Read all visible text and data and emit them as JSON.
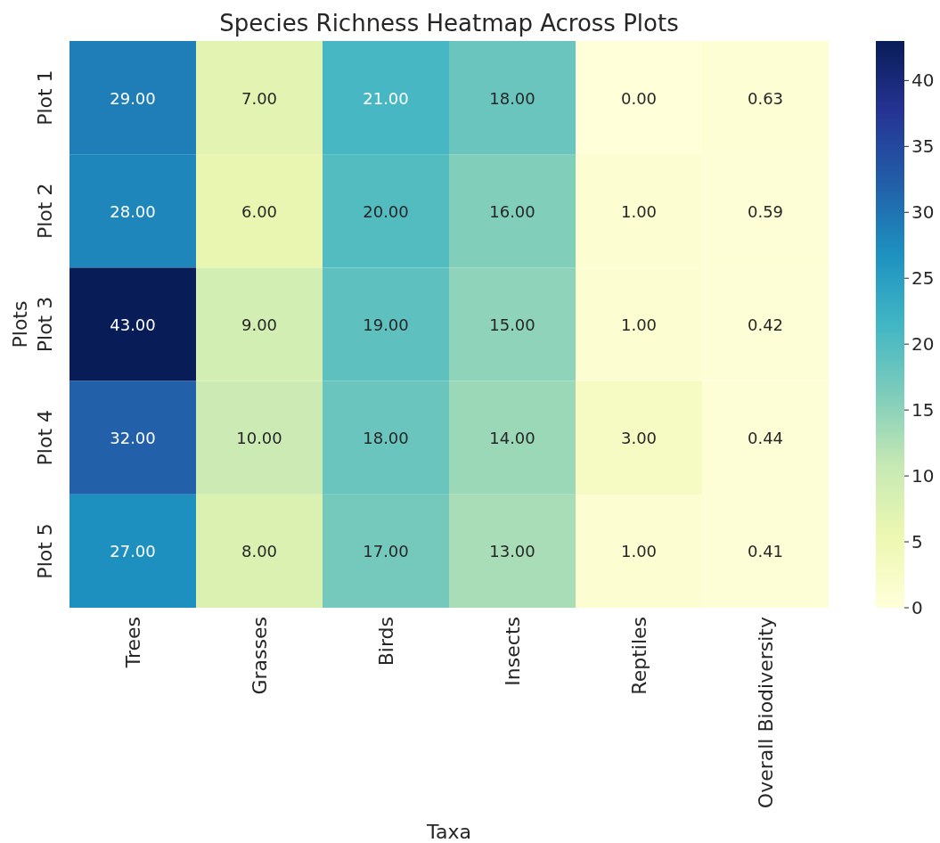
{
  "chart_data": {
    "type": "heatmap",
    "title": "Species Richness Heatmap Across Plots",
    "xlabel": "Taxa",
    "ylabel": "Plots",
    "categories": [
      "Trees",
      "Grasses",
      "Birds",
      "Insects",
      "Reptiles",
      "Overall Biodiversity"
    ],
    "y_categories": [
      "Plot 1",
      "Plot 2",
      "Plot 3",
      "Plot 4",
      "Plot 5"
    ],
    "cells": [
      [
        29,
        7,
        21,
        18,
        0,
        0.63
      ],
      [
        28,
        6,
        20,
        16,
        1,
        0.59
      ],
      [
        43,
        9,
        19,
        15,
        1,
        0.42
      ],
      [
        32,
        10,
        18,
        14,
        3,
        0.44
      ],
      [
        27,
        8,
        17,
        13,
        1,
        0.41
      ]
    ],
    "cell_labels": [
      [
        "29.00",
        "7.00",
        "21.00",
        "18.00",
        "0.00",
        "0.63"
      ],
      [
        "28.00",
        "6.00",
        "20.00",
        "16.00",
        "1.00",
        "0.59"
      ],
      [
        "43.00",
        "9.00",
        "19.00",
        "15.00",
        "1.00",
        "0.42"
      ],
      [
        "32.00",
        "10.00",
        "18.00",
        "14.00",
        "3.00",
        "0.44"
      ],
      [
        "27.00",
        "8.00",
        "17.00",
        "13.00",
        "1.00",
        "0.41"
      ]
    ],
    "clim": [
      0,
      43
    ],
    "cticks": [
      0,
      5,
      10,
      15,
      20,
      25,
      30,
      35,
      40
    ]
  }
}
